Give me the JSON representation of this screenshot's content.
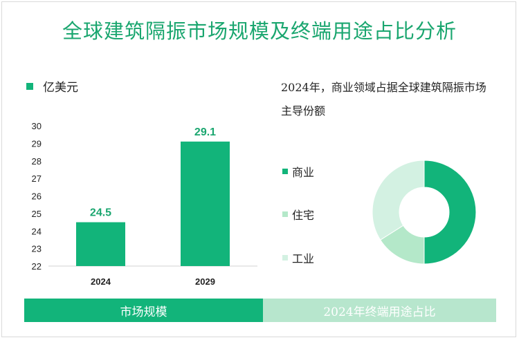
{
  "title": "全球建筑隔振市场规模及终端用途占比分析",
  "colors": {
    "accent": "#12b47a",
    "title": "#1aa66f",
    "light": "#b7e6cd"
  },
  "chart_data": [
    {
      "type": "bar",
      "unit_label": "亿美元",
      "categories": [
        "2024",
        "2029"
      ],
      "values": [
        24.5,
        29.1
      ],
      "data_labels": [
        "24.5",
        "29.1"
      ],
      "ylim": [
        22,
        30
      ],
      "yticks": [
        "22",
        "23",
        "24",
        "25",
        "26",
        "27",
        "28",
        "29",
        "30"
      ],
      "grid": false,
      "color": "#12b47a"
    },
    {
      "type": "pie",
      "title": "2024年，商业领域占据全球建筑隔振市场主导份额",
      "donut": true,
      "slices": [
        {
          "name": "商业",
          "value": 50,
          "color": "#12b47a"
        },
        {
          "name": "住宅",
          "value": 16,
          "color": "#b4e8c9"
        },
        {
          "name": "工业",
          "value": 34,
          "color": "#d3f1e2"
        }
      ],
      "legend_position": "left"
    }
  ],
  "footer": {
    "left_label": "市场规模",
    "right_label": "2024年终端用途占比"
  }
}
